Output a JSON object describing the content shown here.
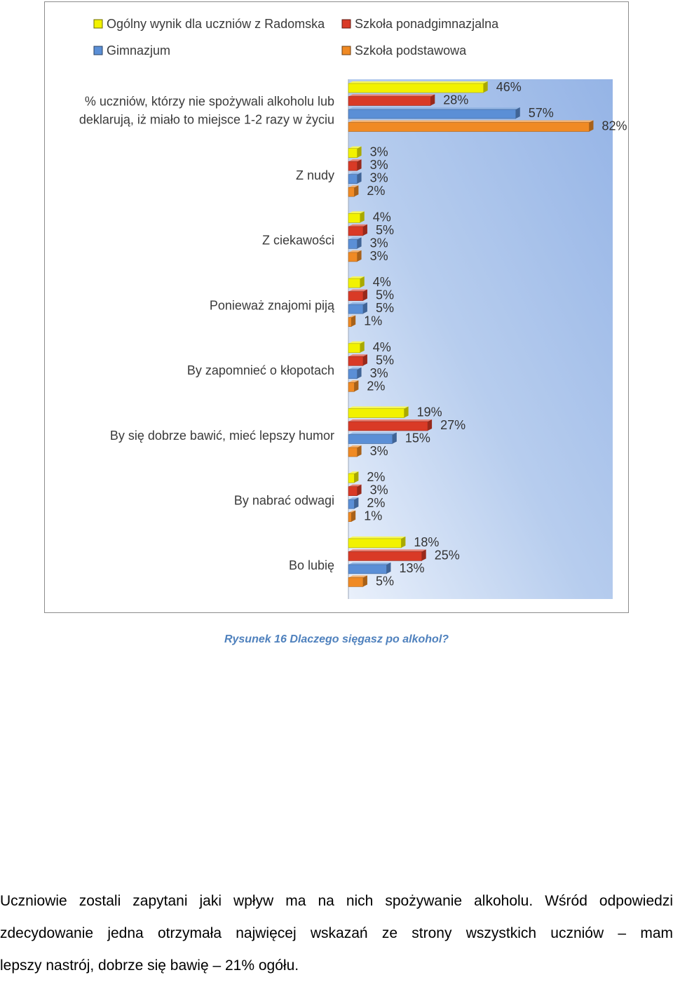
{
  "chart_data": {
    "type": "bar",
    "orientation": "horizontal",
    "categories": [
      "% uczniów, którzy nie spożywali alkoholu lub deklarują, iż miało to miejsce 1-2 razy w życiu",
      "Z nudy",
      "Z ciekawości",
      "Ponieważ znajomi piją",
      "By zapomnieć o kłopotach",
      "By się dobrze bawić, mieć lepszy humor",
      "By nabrać odwagi",
      "Bo lubię"
    ],
    "category_lines": [
      [
        "% uczniów, którzy nie spożywali alkoholu lub",
        "deklarują, iż miało to miejsce 1-2 razy w życiu"
      ],
      [
        "Z nudy"
      ],
      [
        "Z ciekawości"
      ],
      [
        "Ponieważ znajomi piją"
      ],
      [
        "By zapomnieć o kłopotach"
      ],
      [
        "By się dobrze bawić, mieć lepszy humor"
      ],
      [
        "By nabrać odwagi"
      ],
      [
        "Bo lubię"
      ]
    ],
    "series": [
      {
        "name": "Ogólny wynik dla uczniów z Radomska",
        "color": "#f2f200",
        "values": [
          46,
          3,
          4,
          4,
          4,
          19,
          2,
          18
        ]
      },
      {
        "name": "Szkoła ponadgimnazjalna",
        "color": "#d93a26",
        "values": [
          28,
          3,
          5,
          5,
          5,
          27,
          3,
          25
        ]
      },
      {
        "name": "Gimnazjum",
        "color": "#5b8fd6",
        "values": [
          57,
          3,
          3,
          5,
          3,
          15,
          2,
          13
        ]
      },
      {
        "name": "Szkoła podstawowa",
        "color": "#f08a24",
        "values": [
          82,
          2,
          3,
          1,
          2,
          3,
          1,
          5
        ]
      }
    ],
    "value_suffix": "%",
    "xlim": [
      0,
      90
    ],
    "legend_position": "top",
    "grid": false
  },
  "caption": "Rysunek 16 Dlaczego sięgasz po alkohol?",
  "paragraph_lines": [
    "Uczniowie zostali zapytani jaki wpływ ma na nich spożywanie alkoholu. Wśród odpowiedzi",
    "zdecydowanie jedna otrzymała najwięcej wskazań ze strony wszystkich uczniów – mam",
    "lepszy nastrój, dobrze się bawię – 21% ogółu."
  ]
}
